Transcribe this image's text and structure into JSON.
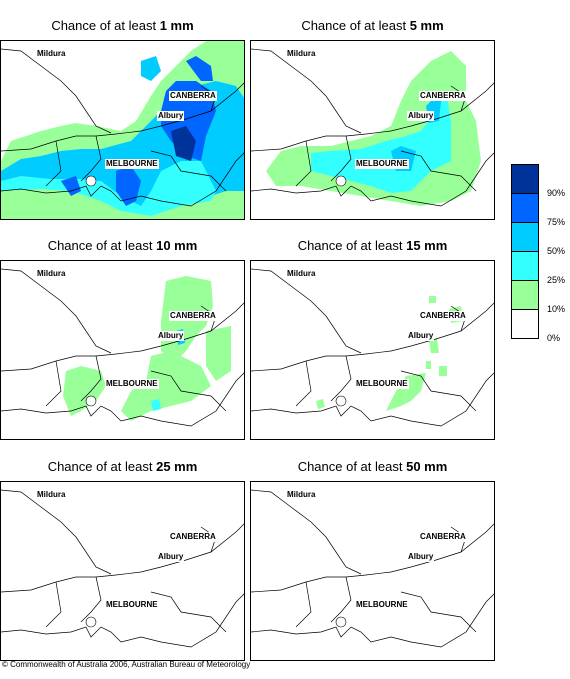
{
  "panels": [
    {
      "prefix": "Chance of at least ",
      "amount": "1 mm"
    },
    {
      "prefix": "Chance of at least ",
      "amount": "5 mm"
    },
    {
      "prefix": "Chance of at least ",
      "amount": "10 mm"
    },
    {
      "prefix": "Chance of at least ",
      "amount": "15 mm"
    },
    {
      "prefix": "Chance of at least ",
      "amount": "25 mm"
    },
    {
      "prefix": "Chance of at least ",
      "amount": "50 mm"
    }
  ],
  "places": {
    "mildura": "Mildura",
    "canberra": "CANBERRA",
    "albury": "Albury",
    "melbourne": "MELBOURNE"
  },
  "legend": {
    "labels": [
      "90%",
      "75%",
      "50%",
      "25%",
      "10%",
      "0%"
    ],
    "colors": [
      "#003399",
      "#0066ff",
      "#00ccff",
      "#33ffff",
      "#99ff99",
      "#ffffff"
    ]
  },
  "credit": "© Commonwealth of Australia 2006, Australian Bureau of Meteorology"
}
